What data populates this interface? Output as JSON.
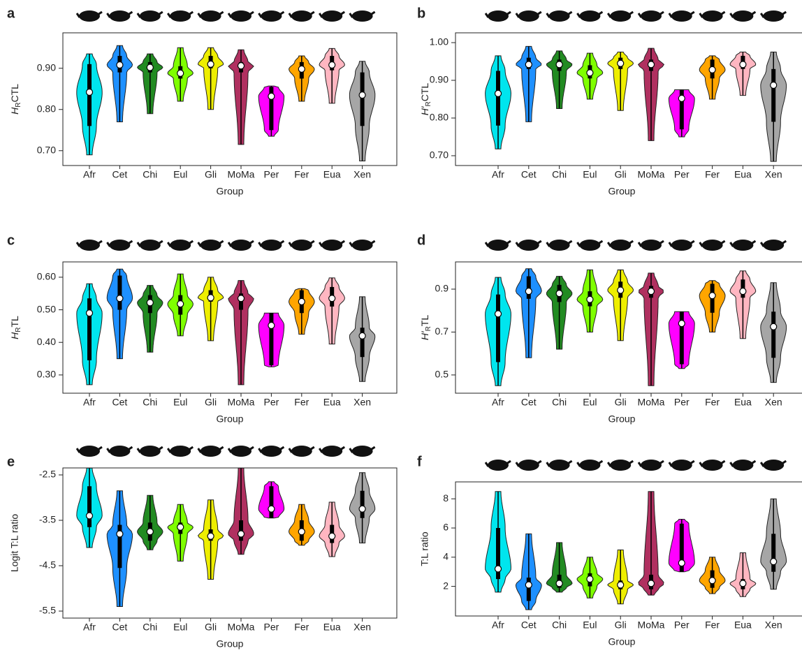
{
  "chart_data": [
    {
      "type": "violin",
      "panel_label": "a",
      "ylabel": {
        "main": "H",
        "sub": "R",
        "rest": "CTL"
      },
      "xlabel": "Group",
      "categories": [
        "Afr",
        "Cet",
        "Chi",
        "Eul",
        "Gli",
        "MoMa",
        "Per",
        "Fer",
        "Eua",
        "Xen"
      ],
      "colors": [
        "#00e5ee",
        "#1e90ff",
        "#228b22",
        "#7fff00",
        "#eeee00",
        "#b03060",
        "#ff00ff",
        "#ffa500",
        "#ffb6c1",
        "#a6a6a6"
      ],
      "min": [
        0.69,
        0.77,
        0.79,
        0.82,
        0.8,
        0.715,
        0.735,
        0.82,
        0.815,
        0.675
      ],
      "q1": [
        0.76,
        0.89,
        0.89,
        0.875,
        0.9,
        0.89,
        0.75,
        0.875,
        0.895,
        0.76
      ],
      "median": [
        0.842,
        0.908,
        0.902,
        0.888,
        0.91,
        0.906,
        0.832,
        0.898,
        0.908,
        0.835
      ],
      "q3": [
        0.91,
        0.93,
        0.915,
        0.905,
        0.93,
        0.915,
        0.855,
        0.915,
        0.93,
        0.89
      ],
      "max": [
        0.935,
        0.955,
        0.935,
        0.95,
        0.95,
        0.945,
        0.857,
        0.93,
        0.948,
        0.917
      ],
      "ylim": [
        0.664,
        0.986
      ],
      "yticks": [
        {
          "value": 0.7,
          "label": "0.70"
        },
        {
          "value": 0.8,
          "label": "0.80"
        },
        {
          "value": 0.9,
          "label": "0.90"
        }
      ]
    },
    {
      "type": "violin",
      "panel_label": "b",
      "ylabel": {
        "main": "H′",
        "sub": "R",
        "rest": "CTL"
      },
      "xlabel": "Group",
      "categories": [
        "Afr",
        "Cet",
        "Chi",
        "Eul",
        "Gli",
        "MoMa",
        "Per",
        "Fer",
        "Eua",
        "Xen"
      ],
      "colors": [
        "#00e5ee",
        "#1e90ff",
        "#228b22",
        "#7fff00",
        "#eeee00",
        "#b03060",
        "#ff00ff",
        "#ffa500",
        "#ffb6c1",
        "#a6a6a6"
      ],
      "min": [
        0.718,
        0.79,
        0.825,
        0.85,
        0.82,
        0.74,
        0.75,
        0.85,
        0.86,
        0.685
      ],
      "q1": [
        0.78,
        0.93,
        0.925,
        0.905,
        0.93,
        0.925,
        0.77,
        0.905,
        0.93,
        0.79
      ],
      "median": [
        0.865,
        0.942,
        0.942,
        0.92,
        0.945,
        0.942,
        0.852,
        0.928,
        0.942,
        0.887
      ],
      "q3": [
        0.925,
        0.96,
        0.955,
        0.94,
        0.96,
        0.955,
        0.875,
        0.955,
        0.965,
        0.93
      ],
      "max": [
        0.965,
        0.99,
        0.978,
        0.972,
        0.975,
        0.985,
        0.875,
        0.965,
        0.975,
        0.975
      ],
      "ylim": [
        0.674,
        1.026
      ],
      "yticks": [
        {
          "value": 0.7,
          "label": "0.70"
        },
        {
          "value": 0.8,
          "label": "0.80"
        },
        {
          "value": 0.9,
          "label": "0.90"
        },
        {
          "value": 1.0,
          "label": "1.00"
        }
      ]
    },
    {
      "type": "violin",
      "panel_label": "c",
      "ylabel": {
        "main": "H",
        "sub": "R",
        "rest": "TL"
      },
      "xlabel": "Group",
      "categories": [
        "Afr",
        "Cet",
        "Chi",
        "Eul",
        "Gli",
        "MoMa",
        "Per",
        "Fer",
        "Eua",
        "Xen"
      ],
      "colors": [
        "#00e5ee",
        "#1e90ff",
        "#228b22",
        "#7fff00",
        "#eeee00",
        "#b03060",
        "#ff00ff",
        "#ffa500",
        "#ffb6c1",
        "#a6a6a6"
      ],
      "min": [
        0.27,
        0.35,
        0.37,
        0.42,
        0.405,
        0.27,
        0.325,
        0.425,
        0.395,
        0.28
      ],
      "q1": [
        0.345,
        0.5,
        0.49,
        0.485,
        0.525,
        0.5,
        0.33,
        0.49,
        0.51,
        0.355
      ],
      "median": [
        0.49,
        0.535,
        0.522,
        0.518,
        0.537,
        0.535,
        0.452,
        0.525,
        0.535,
        0.42
      ],
      "q3": [
        0.535,
        0.605,
        0.545,
        0.545,
        0.56,
        0.55,
        0.49,
        0.56,
        0.57,
        0.445
      ],
      "max": [
        0.58,
        0.625,
        0.575,
        0.61,
        0.6,
        0.59,
        0.49,
        0.565,
        0.598,
        0.54
      ],
      "ylim": [
        0.244,
        0.647
      ],
      "yticks": [
        {
          "value": 0.3,
          "label": "0.30"
        },
        {
          "value": 0.4,
          "label": "0.40"
        },
        {
          "value": 0.5,
          "label": "0.50"
        },
        {
          "value": 0.6,
          "label": "0.60"
        }
      ]
    },
    {
      "type": "violin",
      "panel_label": "d",
      "ylabel": {
        "main": "H′",
        "sub": "R",
        "rest": "TL"
      },
      "xlabel": "Group",
      "categories": [
        "Afr",
        "Cet",
        "Chi",
        "Eul",
        "Gli",
        "MoMa",
        "Per",
        "Fer",
        "Eua",
        "Xen"
      ],
      "colors": [
        "#00e5ee",
        "#1e90ff",
        "#228b22",
        "#7fff00",
        "#eeee00",
        "#b03060",
        "#ff00ff",
        "#ffa500",
        "#ffb6c1",
        "#a6a6a6"
      ],
      "min": [
        0.45,
        0.58,
        0.62,
        0.7,
        0.66,
        0.45,
        0.53,
        0.7,
        0.67,
        0.465
      ],
      "q1": [
        0.56,
        0.855,
        0.84,
        0.82,
        0.86,
        0.86,
        0.55,
        0.79,
        0.86,
        0.58
      ],
      "median": [
        0.785,
        0.89,
        0.88,
        0.852,
        0.895,
        0.89,
        0.74,
        0.87,
        0.89,
        0.725
      ],
      "q3": [
        0.875,
        0.96,
        0.92,
        0.89,
        0.935,
        0.915,
        0.795,
        0.925,
        0.945,
        0.795
      ],
      "max": [
        0.955,
        0.995,
        0.96,
        0.99,
        0.99,
        0.975,
        0.795,
        0.94,
        0.985,
        0.93
      ],
      "ylim": [
        0.415,
        1.027
      ],
      "yticks": [
        0.5,
        0.7,
        0.9
      ]
    },
    {
      "type": "violin",
      "panel_label": "e",
      "ylabel": "Logit T:L ratio",
      "xlabel": "Group",
      "categories": [
        "Afr",
        "Cet",
        "Chi",
        "Eul",
        "Gli",
        "MoMa",
        "Per",
        "Fer",
        "Eua",
        "Xen"
      ],
      "colors": [
        "#00e5ee",
        "#1e90ff",
        "#228b22",
        "#7fff00",
        "#eeee00",
        "#b03060",
        "#ff00ff",
        "#ffa500",
        "#ffb6c1",
        "#a6a6a6"
      ],
      "min": [
        -4.1,
        -5.4,
        -4.15,
        -4.4,
        -4.8,
        -4.25,
        -3.45,
        -4.05,
        -4.3,
        -4.0
      ],
      "q1": [
        -3.65,
        -4.55,
        -3.95,
        -3.8,
        -3.95,
        -3.95,
        -3.45,
        -3.95,
        -4.0,
        -3.45
      ],
      "median": [
        -3.4,
        -3.8,
        -3.75,
        -3.65,
        -3.85,
        -3.8,
        -3.25,
        -3.75,
        -3.85,
        -3.25
      ],
      "q3": [
        -2.75,
        -3.6,
        -3.55,
        -3.55,
        -3.7,
        -3.5,
        -2.75,
        -3.5,
        -3.6,
        -2.85
      ],
      "max": [
        -2.35,
        -2.85,
        -2.95,
        -3.15,
        -3.05,
        -2.35,
        -2.65,
        -3.15,
        -3.1,
        -2.45
      ],
      "ylim": [
        -5.654,
        -2.346
      ],
      "yticks": [
        -2.5,
        -3.5,
        -4.5,
        -5.5
      ]
    },
    {
      "type": "violin",
      "panel_label": "f",
      "ylabel": "T:L ratio",
      "xlabel": "Group",
      "categories": [
        "Afr",
        "Cet",
        "Chi",
        "Eul",
        "Gli",
        "MoMa",
        "Per",
        "Fer",
        "Eua",
        "Xen"
      ],
      "colors": [
        "#00e5ee",
        "#1e90ff",
        "#228b22",
        "#7fff00",
        "#eeee00",
        "#b03060",
        "#ff00ff",
        "#ffa500",
        "#ffb6c1",
        "#a6a6a6"
      ],
      "min": [
        1.6,
        0.4,
        1.6,
        1.2,
        0.8,
        1.4,
        3.0,
        1.5,
        1.3,
        1.8
      ],
      "q1": [
        2.5,
        1.0,
        1.9,
        2.0,
        1.8,
        1.8,
        3.0,
        1.9,
        1.8,
        3.0
      ],
      "median": [
        3.2,
        2.1,
        2.2,
        2.5,
        2.1,
        2.2,
        3.6,
        2.4,
        2.2,
        3.7
      ],
      "q3": [
        6.0,
        2.6,
        2.8,
        2.9,
        2.4,
        2.8,
        6.3,
        3.1,
        2.5,
        5.6
      ],
      "max": [
        8.5,
        5.6,
        5.0,
        4.0,
        4.5,
        8.5,
        6.6,
        4.0,
        4.3,
        8.0
      ],
      "ylim": [
        -0.03,
        9.16
      ],
      "yticks": [
        2,
        4,
        6,
        8
      ]
    }
  ]
}
